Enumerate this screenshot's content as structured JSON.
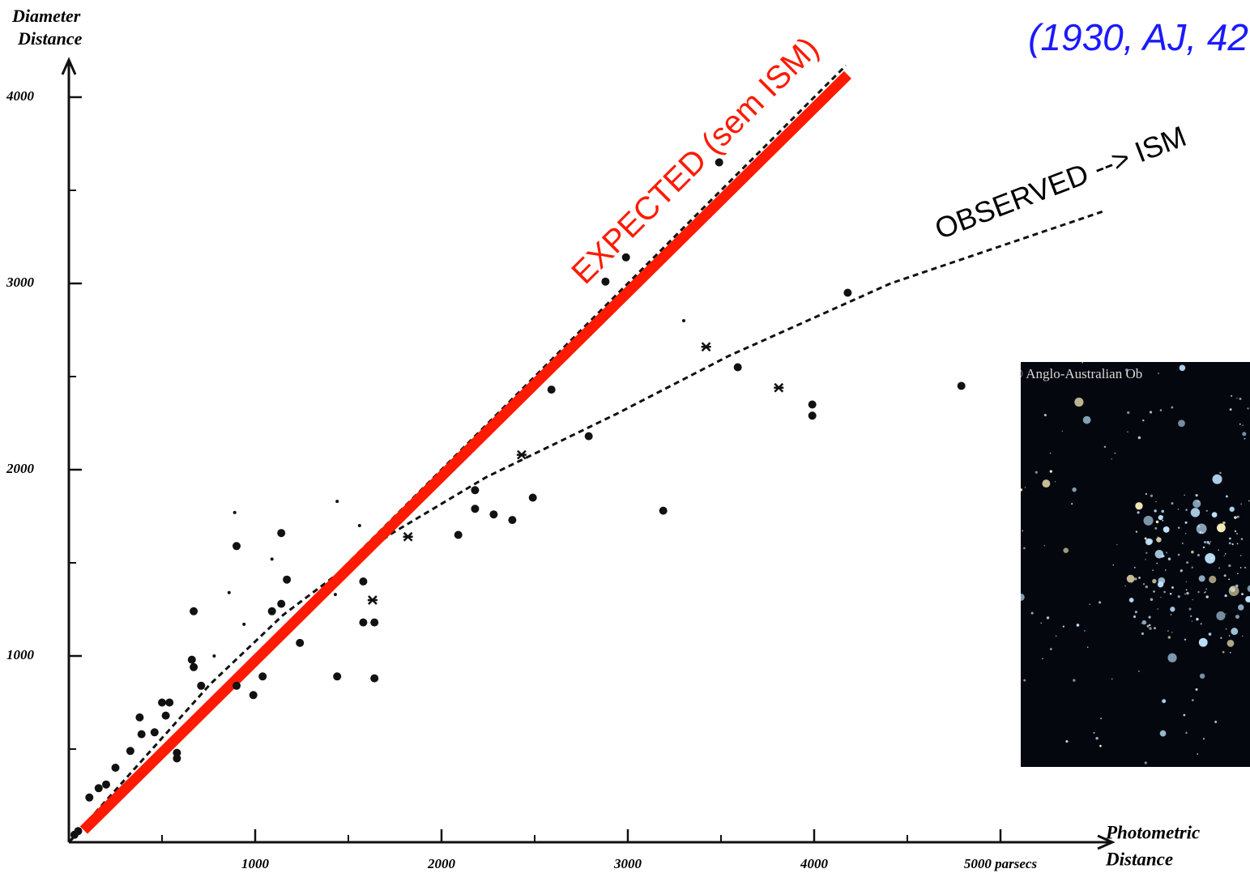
{
  "chart_data": {
    "type": "scatter",
    "annotations": [
      "(1930, AJ, 42",
      "EXPECTED (sem ISM)",
      "OBSERVED --> ISM"
    ],
    "inset_label": "© Anglo-Australian Ob",
    "ylabel": [
      "Diameter",
      "Distance"
    ],
    "xlabel": [
      "Photometric",
      "Distance"
    ],
    "xlim": [
      0,
      5600
    ],
    "ylim": [
      0,
      4200
    ],
    "xticks": [
      1000,
      2000,
      3000,
      4000,
      {
        "value": 5000,
        "label": "5000 parsecs"
      }
    ],
    "yticks": [
      1000,
      2000,
      3000,
      4000
    ],
    "xminorticks": [
      500,
      1500,
      2500,
      3500,
      4500
    ],
    "yminorticks": [
      500,
      1500,
      2500,
      3500
    ],
    "series": [
      {
        "kind": "line",
        "style": "dashed",
        "color": "#111111",
        "width": 3,
        "x": [
          0,
          4170
        ],
        "y": [
          0,
          4170
        ]
      },
      {
        "kind": "line",
        "style": "dashed",
        "color": "#111111",
        "width": 3,
        "x": [
          0,
          760,
          1150,
          1720,
          2240,
          2940,
          3540,
          4410,
          5560
        ],
        "y": [
          0,
          850,
          1220,
          1650,
          1960,
          2300,
          2610,
          3000,
          3390
        ]
      },
      {
        "kind": "line",
        "style": "solid",
        "color": "#ff1a00",
        "width": 13,
        "x": [
          80,
          4180
        ],
        "y": [
          65,
          4120
        ]
      },
      {
        "kind": "scatter",
        "marker": "dot",
        "size": 5,
        "color": "#111111",
        "x": [
          3490,
          2990,
          2880,
          4180,
          2590,
          3590,
          4790,
          3990,
          3990,
          2790,
          2180,
          2490,
          2180,
          2280,
          2380,
          3190,
          2090,
          1140,
          900,
          1170,
          1580,
          1140,
          1090,
          670,
          1640,
          1580,
          1240,
          660,
          670,
          1440,
          1640,
          1040,
          990,
          900,
          710,
          500,
          540,
          520,
          380,
          390,
          460,
          330,
          580,
          580,
          250,
          200,
          160,
          110,
          30,
          50
        ],
        "y": [
          3650,
          3140,
          3010,
          2950,
          2430,
          2550,
          2450,
          2350,
          2290,
          2180,
          1890,
          1850,
          1790,
          1760,
          1730,
          1780,
          1650,
          1660,
          1590,
          1410,
          1400,
          1280,
          1240,
          1240,
          1180,
          1180,
          1070,
          980,
          940,
          890,
          880,
          890,
          790,
          840,
          840,
          750,
          750,
          680,
          670,
          580,
          590,
          490,
          480,
          450,
          400,
          310,
          290,
          240,
          40,
          60
        ]
      },
      {
        "kind": "scatter",
        "marker": "dot",
        "size": 2,
        "color": "#111111",
        "x": [
          890,
          1440,
          1560,
          3300,
          1090,
          860,
          940,
          1430,
          780
        ],
        "y": [
          1770,
          1830,
          1700,
          2800,
          1520,
          1340,
          1170,
          1330,
          1000
        ]
      },
      {
        "kind": "scatter",
        "marker": "cross",
        "size": 5,
        "color": "#111111",
        "x": [
          1630,
          3420,
          3810,
          2430,
          1820
        ],
        "y": [
          1300,
          2660,
          2440,
          2080,
          1640
        ]
      }
    ]
  }
}
